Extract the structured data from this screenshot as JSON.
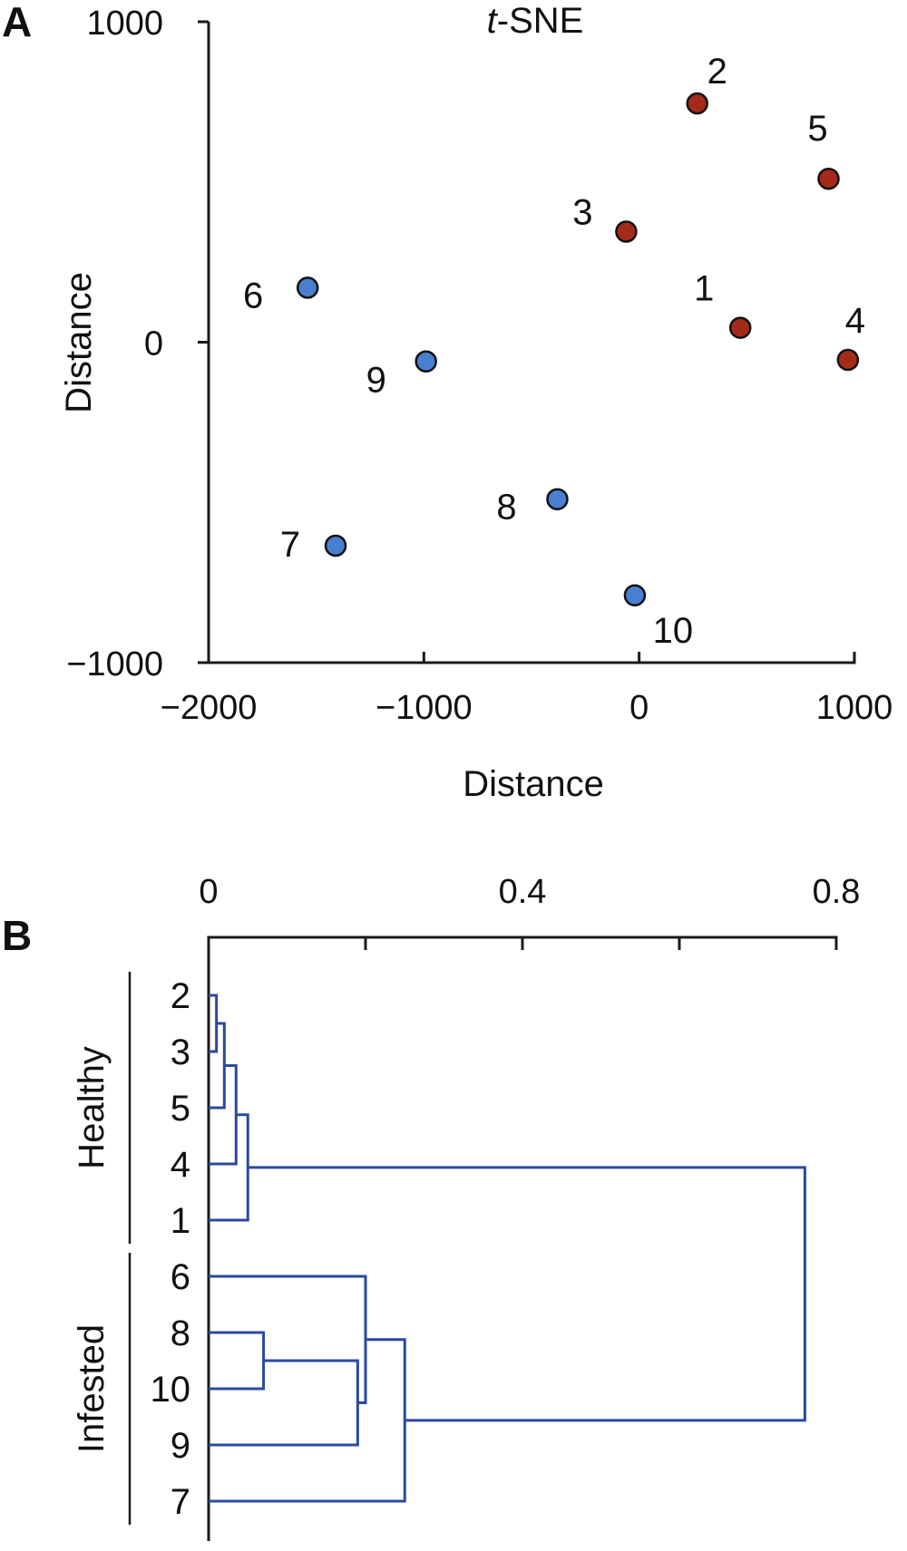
{
  "chart_data": [
    {
      "panel": "A",
      "type": "scatter",
      "title": "t-SNE",
      "title_italic_prefix": "t",
      "title_suffix": "-SNE",
      "xlabel": "Distance",
      "ylabel": "Distance",
      "xlim": [
        -2000,
        1000
      ],
      "ylim": [
        -1000,
        1000
      ],
      "x_ticks": [
        -2000,
        -1000,
        0,
        1000
      ],
      "x_tick_labels": [
        "−2000",
        "−1000",
        "0",
        "1000"
      ],
      "y_ticks": [
        -1000,
        0,
        1000
      ],
      "y_tick_labels": [
        "−1000",
        "0",
        "1000"
      ],
      "grid": false,
      "series": [
        {
          "color": "#a52a1a",
          "points": [
            {
              "label": "1",
              "x": 470,
              "y": 45
            },
            {
              "label": "2",
              "x": 270,
              "y": 745
            },
            {
              "label": "3",
              "x": -60,
              "y": 345
            },
            {
              "label": "4",
              "x": 970,
              "y": -55
            },
            {
              "label": "5",
              "x": 880,
              "y": 510
            }
          ]
        },
        {
          "color": "#4a7fd0",
          "points": [
            {
              "label": "6",
              "x": -1540,
              "y": 170
            },
            {
              "label": "7",
              "x": -1410,
              "y": -635
            },
            {
              "label": "8",
              "x": -380,
              "y": -490
            },
            {
              "label": "9",
              "x": -990,
              "y": -60
            },
            {
              "label": "10",
              "x": -20,
              "y": -790
            }
          ]
        }
      ]
    },
    {
      "panel": "B",
      "type": "dendrogram",
      "x_ticks": [
        0,
        0.2,
        0.4,
        0.6,
        0.8
      ],
      "x_tick_labels": [
        "0",
        "",
        "0.4",
        "",
        "0.8"
      ],
      "xlim": [
        0,
        0.8
      ],
      "leaf_order": [
        "2",
        "3",
        "5",
        "4",
        "1",
        "6",
        "8",
        "10",
        "9",
        "7"
      ],
      "groups": [
        {
          "name": "Healthy",
          "leaves": [
            "2",
            "3",
            "5",
            "4",
            "1"
          ]
        },
        {
          "name": "Infested",
          "leaves": [
            "6",
            "8",
            "10",
            "9",
            "7"
          ]
        }
      ],
      "merges": [
        {
          "a": "2",
          "b": "3",
          "height": 0.01
        },
        {
          "a": "2+3",
          "b": "5",
          "height": 0.02
        },
        {
          "a": "2+3+5",
          "b": "4",
          "height": 0.035
        },
        {
          "a": "2+3+5+4",
          "b": "1",
          "height": 0.05
        },
        {
          "a": "8",
          "b": "10",
          "height": 0.07
        },
        {
          "a": "8+10",
          "b": "9",
          "height": 0.19
        },
        {
          "a": "6",
          "b": "8+10+9",
          "height": 0.2
        },
        {
          "a": "6+8+10+9",
          "b": "7",
          "height": 0.25
        },
        {
          "a": "Healthy",
          "b": "Infested",
          "height": 0.76
        }
      ],
      "line_color": "#2a4aa0"
    }
  ]
}
